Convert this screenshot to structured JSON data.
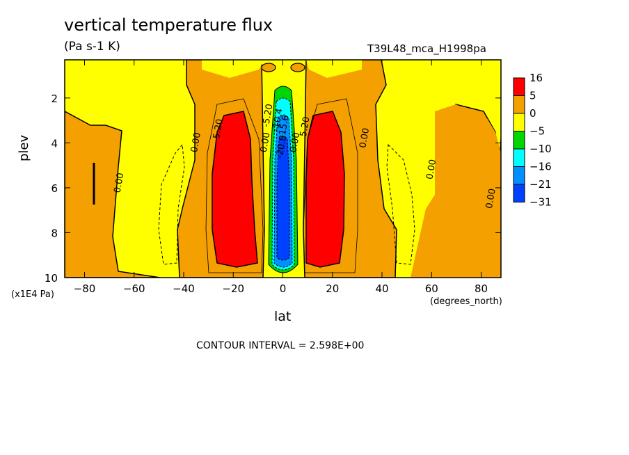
{
  "chart_data": {
    "type": "contour",
    "title": "vertical temperature flux",
    "units": "(Pa s-1 K)",
    "run_label": "T39L48_mca_H1998pa",
    "xlabel": "lat",
    "xunit": "(degrees_north)",
    "ylabel": "plev",
    "yunit": "(x1E4 Pa)",
    "xlim": [
      -88,
      88
    ],
    "ylim": [
      0.3,
      10
    ],
    "y_inverted": true,
    "xticks": [
      -80,
      -60,
      -40,
      -20,
      0,
      20,
      40,
      60,
      80
    ],
    "yticks": [
      2,
      4,
      6,
      8,
      10
    ],
    "contour_interval_text": "CONTOUR INTERVAL = 2.598E+00",
    "contour_labels": [
      {
        "text": "0.00",
        "x": -65,
        "y": 5.8
      },
      {
        "text": "0.00",
        "x": -34,
        "y": 4.0
      },
      {
        "text": "5.20",
        "x": -25,
        "y": 3.4
      },
      {
        "text": "0.00",
        "x": -6,
        "y": 4.0
      },
      {
        "text": "-5.20",
        "x": -5,
        "y": 2.8
      },
      {
        "text": "-10.4",
        "x": -1,
        "y": 3.0
      },
      {
        "text": "-15.6",
        "x": 1.5,
        "y": 3.3
      },
      {
        "text": "-20.8",
        "x": 0.5,
        "y": 4.2
      },
      {
        "text": "0.00",
        "x": 6,
        "y": 4.0
      },
      {
        "text": "5.20",
        "x": 10,
        "y": 3.3
      },
      {
        "text": "0.00",
        "x": 34,
        "y": 3.8
      },
      {
        "text": "0.00",
        "x": 61,
        "y": 5.2
      },
      {
        "text": "0.00",
        "x": 85,
        "y": 6.5
      }
    ],
    "colorbar": {
      "levels": [
        "16",
        "5",
        "0",
        "-5",
        "-10",
        "-16",
        "-21",
        "-31"
      ],
      "colors": [
        "#ff0000",
        "#f4a000",
        "#ffff00",
        "#00d600",
        "#00ffff",
        "#0090ff",
        "#0040ff"
      ]
    }
  }
}
